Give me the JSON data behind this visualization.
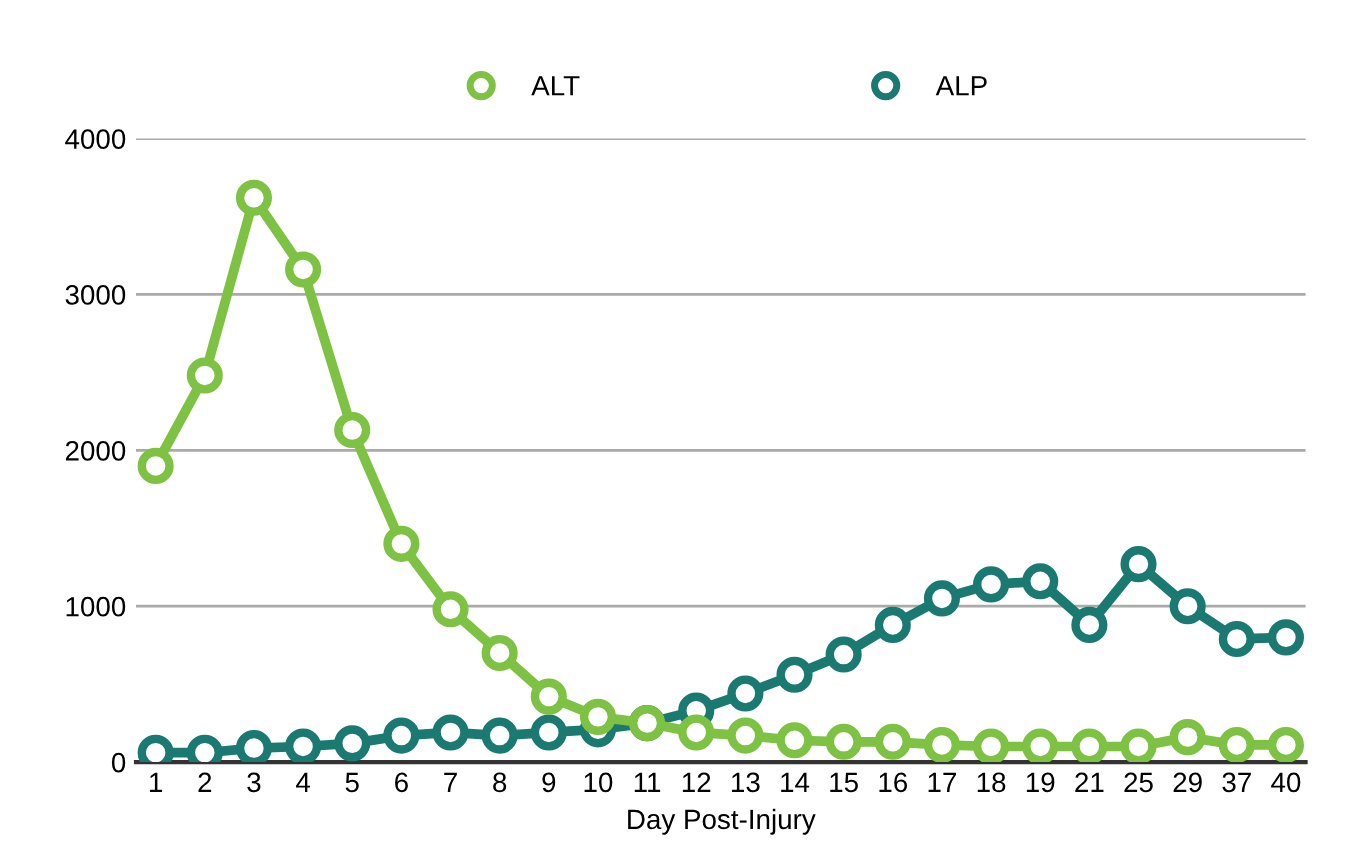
{
  "chart_data": {
    "type": "line",
    "xlabel": "Day Post-Injury",
    "categories": [
      "1",
      "2",
      "3",
      "4",
      "5",
      "6",
      "7",
      "8",
      "9",
      "10",
      "11",
      "12",
      "13",
      "14",
      "15",
      "16",
      "17",
      "18",
      "19",
      "21",
      "25",
      "29",
      "37",
      "40"
    ],
    "series": [
      {
        "name": "ALT",
        "color": "#7dc242",
        "values": [
          1900,
          2480,
          3620,
          3160,
          2130,
          1400,
          980,
          700,
          420,
          290,
          250,
          190,
          170,
          140,
          130,
          130,
          110,
          100,
          100,
          100,
          100,
          160,
          110,
          110
        ]
      },
      {
        "name": "ALP",
        "color": "#1a7a72",
        "values": [
          60,
          60,
          90,
          100,
          120,
          170,
          190,
          170,
          190,
          210,
          250,
          330,
          440,
          560,
          690,
          880,
          1050,
          1140,
          1160,
          880,
          1270,
          1000,
          790,
          800
        ]
      }
    ],
    "ylim": [
      0,
      4000
    ],
    "yticks": [
      0,
      1000,
      2000,
      3000,
      4000
    ],
    "grid": "y",
    "legend": "top",
    "marker": "circle",
    "line_style": "solid"
  }
}
